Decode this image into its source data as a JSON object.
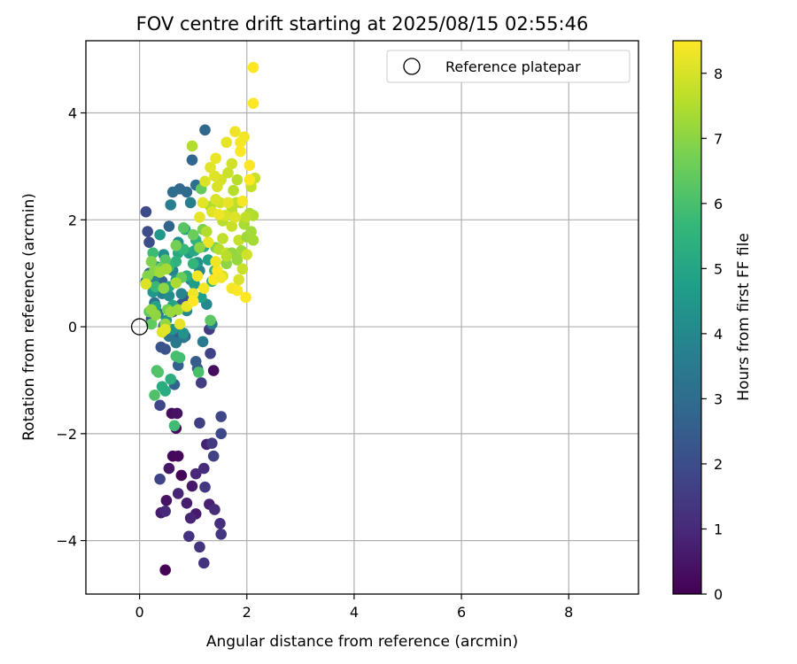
{
  "chart_data": {
    "type": "scatter",
    "title": "FOV centre drift starting at 2025/08/15 02:55:46",
    "xlabel": "Angular distance from reference (arcmin)",
    "ylabel": "Rotation from reference (arcmin)",
    "xlim": [
      -1.0,
      9.3
    ],
    "ylim": [
      -5.0,
      5.35
    ],
    "xticks": [
      0,
      2,
      4,
      6,
      8
    ],
    "xtick_labels": [
      "0",
      "2",
      "4",
      "6",
      "8"
    ],
    "yticks": [
      -4,
      -2,
      0,
      2,
      4
    ],
    "ytick_labels": [
      "−4",
      "−2",
      "0",
      "2",
      "4"
    ],
    "grid": true,
    "colormap": "viridis",
    "colorbar": {
      "label": "Hours from first FF file",
      "min": 0,
      "max": 8.5,
      "ticks": [
        0,
        1,
        2,
        3,
        4,
        5,
        6,
        7,
        8
      ],
      "tick_labels": [
        "0",
        "1",
        "2",
        "3",
        "4",
        "5",
        "6",
        "7",
        "8"
      ]
    },
    "legend": {
      "position": "top-right",
      "entries": [
        "Reference platepar"
      ]
    },
    "reference_point": {
      "name": "Reference platepar",
      "x": 0,
      "y": 0
    },
    "series": [
      {
        "points": [
          [
            0.48,
            -4.55,
            0.05
          ],
          [
            0.78,
            -2.78,
            0.1
          ],
          [
            0.62,
            -2.42,
            0.15
          ],
          [
            0.72,
            -2.42,
            0.2
          ],
          [
            0.68,
            -1.9,
            0.25
          ],
          [
            1.38,
            -0.82,
            0.3
          ],
          [
            0.6,
            -1.62,
            0.35
          ],
          [
            0.7,
            -1.62,
            0.4
          ],
          [
            0.5,
            -3.25,
            0.45
          ],
          [
            0.55,
            -2.65,
            0.5
          ],
          [
            0.98,
            -2.98,
            0.55
          ],
          [
            1.05,
            -3.5,
            0.6
          ],
          [
            0.4,
            -3.48,
            0.65
          ],
          [
            0.88,
            -3.3,
            0.7
          ],
          [
            1.3,
            -3.32,
            0.75
          ],
          [
            1.25,
            -2.2,
            0.8
          ],
          [
            0.72,
            -3.12,
            0.85
          ],
          [
            0.95,
            -3.58,
            0.9
          ],
          [
            1.05,
            -2.75,
            0.95
          ],
          [
            0.48,
            -3.45,
            1.0
          ],
          [
            1.4,
            -3.42,
            1.05
          ],
          [
            1.2,
            -2.65,
            1.1
          ],
          [
            1.5,
            -3.68,
            1.15
          ],
          [
            0.92,
            -3.92,
            1.2
          ],
          [
            1.12,
            -4.12,
            1.25
          ],
          [
            1.2,
            -4.42,
            1.3
          ],
          [
            1.52,
            -3.88,
            1.35
          ],
          [
            1.22,
            -3.0,
            1.4
          ],
          [
            1.35,
            -2.18,
            1.45
          ],
          [
            1.3,
            -0.05,
            1.5
          ],
          [
            1.15,
            -1.05,
            1.55
          ],
          [
            1.12,
            -1.8,
            1.6
          ],
          [
            1.38,
            -2.42,
            1.65
          ],
          [
            1.32,
            -0.5,
            1.7
          ],
          [
            0.38,
            -2.85,
            1.75
          ],
          [
            0.38,
            -1.47,
            1.8
          ],
          [
            1.52,
            -1.68,
            1.85
          ],
          [
            1.52,
            -2.0,
            1.9
          ],
          [
            0.12,
            2.15,
            1.95
          ],
          [
            0.15,
            1.78,
            2.0
          ],
          [
            0.18,
            1.58,
            2.05
          ],
          [
            0.22,
            0.15,
            2.1
          ],
          [
            0.4,
            -0.38,
            2.15
          ],
          [
            0.48,
            -0.42,
            2.2
          ],
          [
            0.62,
            0.28,
            2.25
          ],
          [
            0.78,
            0.42,
            2.3
          ],
          [
            0.88,
            0.55,
            2.35
          ],
          [
            0.72,
            -0.12,
            2.4
          ],
          [
            0.85,
            -0.18,
            2.45
          ],
          [
            1.05,
            -0.65,
            2.5
          ],
          [
            1.08,
            -0.78,
            2.55
          ],
          [
            0.72,
            -0.72,
            2.6
          ],
          [
            0.65,
            -1.08,
            2.65
          ],
          [
            0.42,
            0.85,
            2.7
          ],
          [
            0.55,
            1.88,
            2.75
          ],
          [
            0.98,
            3.12,
            2.8
          ],
          [
            1.22,
            3.68,
            2.85
          ],
          [
            0.75,
            2.58,
            2.9
          ],
          [
            0.88,
            2.52,
            2.95
          ],
          [
            0.62,
            2.52,
            3.0
          ],
          [
            1.05,
            2.65,
            3.05
          ],
          [
            0.18,
            1.0,
            3.1
          ],
          [
            0.12,
            0.85,
            3.15
          ],
          [
            0.28,
            0.45,
            3.2
          ],
          [
            0.35,
            0.25,
            3.25
          ],
          [
            0.45,
            0.02,
            3.3
          ],
          [
            0.55,
            -0.18,
            3.35
          ],
          [
            0.68,
            -0.3,
            3.4
          ],
          [
            0.82,
            -0.2,
            3.45
          ],
          [
            1.18,
            -0.28,
            3.5
          ],
          [
            1.35,
            0.05,
            3.55
          ],
          [
            0.58,
            2.28,
            3.6
          ],
          [
            0.95,
            2.32,
            3.65
          ],
          [
            0.28,
            0.92,
            3.7
          ],
          [
            0.42,
            0.62,
            3.75
          ],
          [
            0.62,
            1.05,
            3.8
          ],
          [
            0.78,
            0.62,
            3.85
          ],
          [
            0.95,
            0.88,
            3.9
          ],
          [
            1.12,
            1.05,
            3.95
          ],
          [
            1.25,
            0.42,
            4.0
          ],
          [
            0.88,
            0.3,
            4.05
          ],
          [
            0.55,
            0.58,
            4.1
          ],
          [
            0.32,
            1.12,
            4.15
          ],
          [
            0.45,
            1.35,
            4.2
          ],
          [
            0.72,
            1.58,
            4.25
          ],
          [
            1.08,
            1.2,
            4.3
          ],
          [
            0.82,
            -0.12,
            4.35
          ],
          [
            0.62,
            -0.05,
            4.4
          ],
          [
            0.5,
            0.12,
            4.45
          ],
          [
            0.25,
            0.65,
            4.5
          ],
          [
            0.38,
            1.72,
            4.55
          ],
          [
            0.68,
            0.88,
            4.6
          ],
          [
            0.92,
            1.38,
            4.65
          ],
          [
            1.02,
            0.8,
            4.7
          ],
          [
            1.15,
            0.55,
            4.75
          ],
          [
            1.28,
            1.25,
            4.8
          ],
          [
            0.85,
            1.82,
            4.85
          ],
          [
            0.55,
            0.75,
            4.9
          ],
          [
            0.3,
            0.38,
            4.95
          ],
          [
            0.62,
            0.4,
            5.0
          ],
          [
            1.02,
            1.42,
            5.05
          ],
          [
            1.2,
            1.5,
            5.1
          ],
          [
            0.72,
            1.38,
            5.15
          ],
          [
            0.48,
            -1.2,
            5.2
          ],
          [
            0.42,
            -1.12,
            5.25
          ],
          [
            0.58,
            -0.98,
            5.3
          ],
          [
            0.88,
            0.95,
            5.35
          ],
          [
            1.05,
            1.62,
            5.4
          ],
          [
            0.68,
            1.22,
            5.45
          ],
          [
            1.4,
            1.05,
            5.5
          ],
          [
            1.35,
            0.85,
            5.55
          ],
          [
            1.0,
            1.18,
            5.6
          ],
          [
            0.82,
            1.45,
            5.65
          ],
          [
            0.55,
            1.12,
            5.7
          ],
          [
            0.3,
            0.75,
            5.75
          ],
          [
            0.25,
            1.38,
            5.8
          ],
          [
            0.65,
            -1.85,
            5.85
          ],
          [
            0.75,
            -0.58,
            5.9
          ],
          [
            0.68,
            -0.55,
            5.95
          ],
          [
            1.1,
            -0.85,
            6.0
          ],
          [
            0.32,
            -0.82,
            6.05
          ],
          [
            0.28,
            -1.28,
            6.1
          ],
          [
            0.35,
            -0.85,
            6.15
          ],
          [
            0.48,
            1.25,
            6.2
          ],
          [
            0.82,
            1.85,
            6.25
          ],
          [
            1.32,
            0.12,
            6.3
          ],
          [
            0.18,
            0.28,
            6.35
          ],
          [
            0.22,
            0.05,
            6.4
          ],
          [
            1.15,
            2.58,
            6.45
          ],
          [
            0.78,
            0.92,
            6.5
          ],
          [
            1.0,
            1.72,
            6.55
          ],
          [
            0.4,
            1.1,
            6.6
          ],
          [
            0.52,
            0.32,
            6.65
          ],
          [
            0.68,
            1.52,
            6.7
          ],
          [
            1.18,
            1.82,
            6.75
          ],
          [
            1.42,
            1.48,
            6.8
          ],
          [
            0.22,
            1.22,
            6.85
          ],
          [
            0.15,
            0.95,
            6.9
          ],
          [
            0.28,
            1.05,
            6.95
          ],
          [
            0.45,
            0.72,
            7.0
          ],
          [
            0.3,
            0.22,
            7.05
          ],
          [
            0.22,
            0.32,
            7.1
          ],
          [
            0.48,
            0.05,
            7.15
          ],
          [
            0.58,
            0.28,
            7.2
          ],
          [
            0.72,
            0.32,
            7.25
          ],
          [
            0.38,
            1.02,
            7.3
          ],
          [
            0.5,
            1.08,
            7.35
          ],
          [
            0.68,
            0.82,
            7.4
          ],
          [
            1.32,
            2.25,
            7.45
          ],
          [
            1.25,
            1.78,
            7.5
          ],
          [
            1.48,
            1.45,
            7.55
          ],
          [
            1.55,
            1.98,
            7.6
          ],
          [
            1.72,
            2.18,
            7.65
          ],
          [
            1.8,
            2.32,
            7.7
          ],
          [
            1.85,
            1.62,
            7.75
          ],
          [
            1.72,
            1.88,
            7.8
          ],
          [
            1.62,
            1.38,
            7.85
          ],
          [
            1.55,
            0.95,
            7.9
          ],
          [
            1.5,
            2.32,
            7.95
          ],
          [
            1.6,
            2.08,
            8.0
          ],
          [
            0.12,
            0.8,
            8.05
          ],
          [
            0.42,
            -0.1,
            8.1
          ],
          [
            0.48,
            -0.05,
            8.15
          ],
          [
            0.75,
            0.05,
            8.2
          ],
          [
            0.88,
            0.38,
            8.25
          ],
          [
            1.0,
            0.62,
            8.3
          ],
          [
            1.08,
            0.95,
            8.35
          ],
          [
            1.2,
            0.72,
            8.4
          ],
          [
            1.38,
            0.88,
            8.45
          ],
          [
            1.45,
            1.05,
            8.5
          ],
          [
            1.62,
            1.18,
            7.05
          ],
          [
            1.72,
            1.38,
            7.1
          ],
          [
            1.82,
            1.25,
            7.15
          ],
          [
            1.9,
            1.42,
            7.2
          ],
          [
            2.0,
            1.68,
            7.25
          ],
          [
            2.08,
            1.78,
            7.3
          ],
          [
            2.12,
            1.62,
            7.35
          ],
          [
            1.95,
            1.92,
            7.4
          ],
          [
            2.05,
            2.12,
            7.45
          ],
          [
            2.12,
            2.08,
            7.5
          ],
          [
            1.75,
            2.55,
            7.55
          ],
          [
            1.82,
            2.75,
            7.6
          ],
          [
            1.88,
            2.32,
            7.65
          ],
          [
            1.98,
            2.05,
            7.7
          ],
          [
            2.08,
            2.62,
            7.75
          ],
          [
            2.15,
            2.78,
            7.8
          ],
          [
            1.65,
            2.88,
            7.85
          ],
          [
            1.72,
            3.05,
            7.9
          ],
          [
            1.52,
            2.75,
            7.95
          ],
          [
            1.45,
            2.62,
            8.0
          ],
          [
            1.42,
            2.38,
            8.05
          ],
          [
            1.35,
            2.15,
            8.1
          ],
          [
            1.18,
            2.32,
            8.15
          ],
          [
            1.12,
            2.05,
            8.2
          ],
          [
            1.28,
            1.58,
            8.25
          ],
          [
            1.42,
            1.22,
            8.3
          ],
          [
            1.52,
            0.92,
            8.35
          ],
          [
            1.72,
            0.72,
            8.4
          ],
          [
            1.82,
            0.68,
            8.45
          ],
          [
            1.98,
            0.55,
            8.5
          ],
          [
            1.62,
            1.32,
            7.6
          ],
          [
            1.55,
            1.65,
            7.7
          ],
          [
            1.92,
            1.08,
            7.8
          ],
          [
            2.0,
            1.35,
            7.9
          ],
          [
            1.85,
            0.88,
            8.0
          ],
          [
            1.78,
            2.05,
            8.1
          ],
          [
            1.65,
            2.32,
            8.2
          ],
          [
            1.48,
            2.1,
            8.3
          ],
          [
            1.92,
            2.35,
            8.4
          ],
          [
            2.05,
            2.75,
            8.5
          ],
          [
            1.78,
            3.65,
            8.3
          ],
          [
            1.88,
            3.45,
            8.4
          ],
          [
            1.95,
            3.55,
            8.35
          ],
          [
            1.88,
            3.28,
            8.45
          ],
          [
            1.62,
            3.45,
            8.2
          ],
          [
            1.42,
            3.15,
            8.25
          ],
          [
            1.32,
            2.98,
            8.15
          ],
          [
            1.4,
            2.82,
            8.1
          ],
          [
            1.22,
            2.72,
            8.05
          ],
          [
            0.98,
            3.38,
            7.5
          ],
          [
            2.05,
            3.02,
            8.45
          ],
          [
            1.12,
            1.48,
            7.0
          ],
          [
            1.0,
            0.48,
            8.5
          ],
          [
            2.12,
            4.18,
            8.5
          ],
          [
            2.12,
            4.85,
            8.5
          ]
        ]
      }
    ]
  }
}
